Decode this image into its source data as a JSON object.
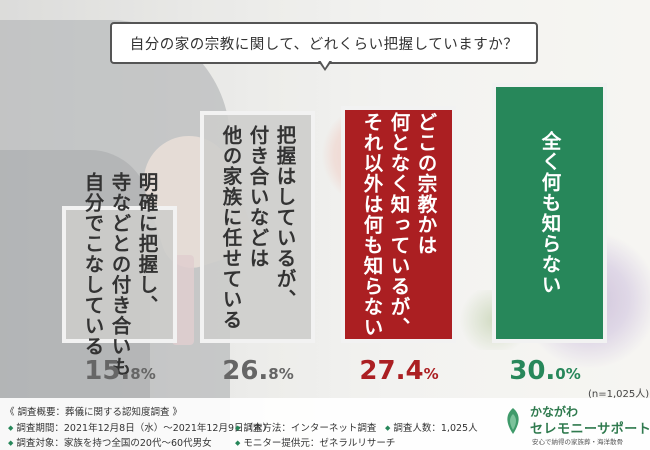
{
  "title": "自分の家の宗教に関して、どれくらい把握していますか？",
  "chart_data": {
    "type": "bar",
    "categories": [
      "明確に把握し、\n寺などとの付き合いも\n自分でこなしている",
      "把握はしているが、\n付き合いなどは\n他の家族に任せている",
      "どこの宗教かは\n何となく知っているが、\nそれ以外は何も知らない",
      "全く何も知らない"
    ],
    "values": [
      15.8,
      26.8,
      27.4,
      30.0
    ],
    "value_labels": [
      {
        "num": "15.",
        "dec": "8%"
      },
      {
        "num": "26.",
        "dec": "8%"
      },
      {
        "num": "27.4",
        "dec": "%"
      },
      {
        "num": "30.",
        "dec": "0%"
      }
    ],
    "unit": "%",
    "sample_note": "(n=1,025人)",
    "colors": [
      "#cdcdcb",
      "#cdcdcb",
      "#ab1f22",
      "#27875a"
    ]
  },
  "footer": {
    "title": "《 調査概要：葬儀に関する認知度調査 》",
    "items": [
      "調査期間：2021年12月8日（水）〜2021年12月9日（木）",
      "調査対象：家族を持つ全国の20代〜60代男女",
      "調査方法：インターネット調査",
      "モニター提供元：ゼネラルリサーチ",
      "調査人数：1,025人"
    ]
  },
  "logo": {
    "line1": "かながわ",
    "line2": "セレモニーサポート",
    "tagline": "安心で納得の家族葬・海洋散骨"
  }
}
